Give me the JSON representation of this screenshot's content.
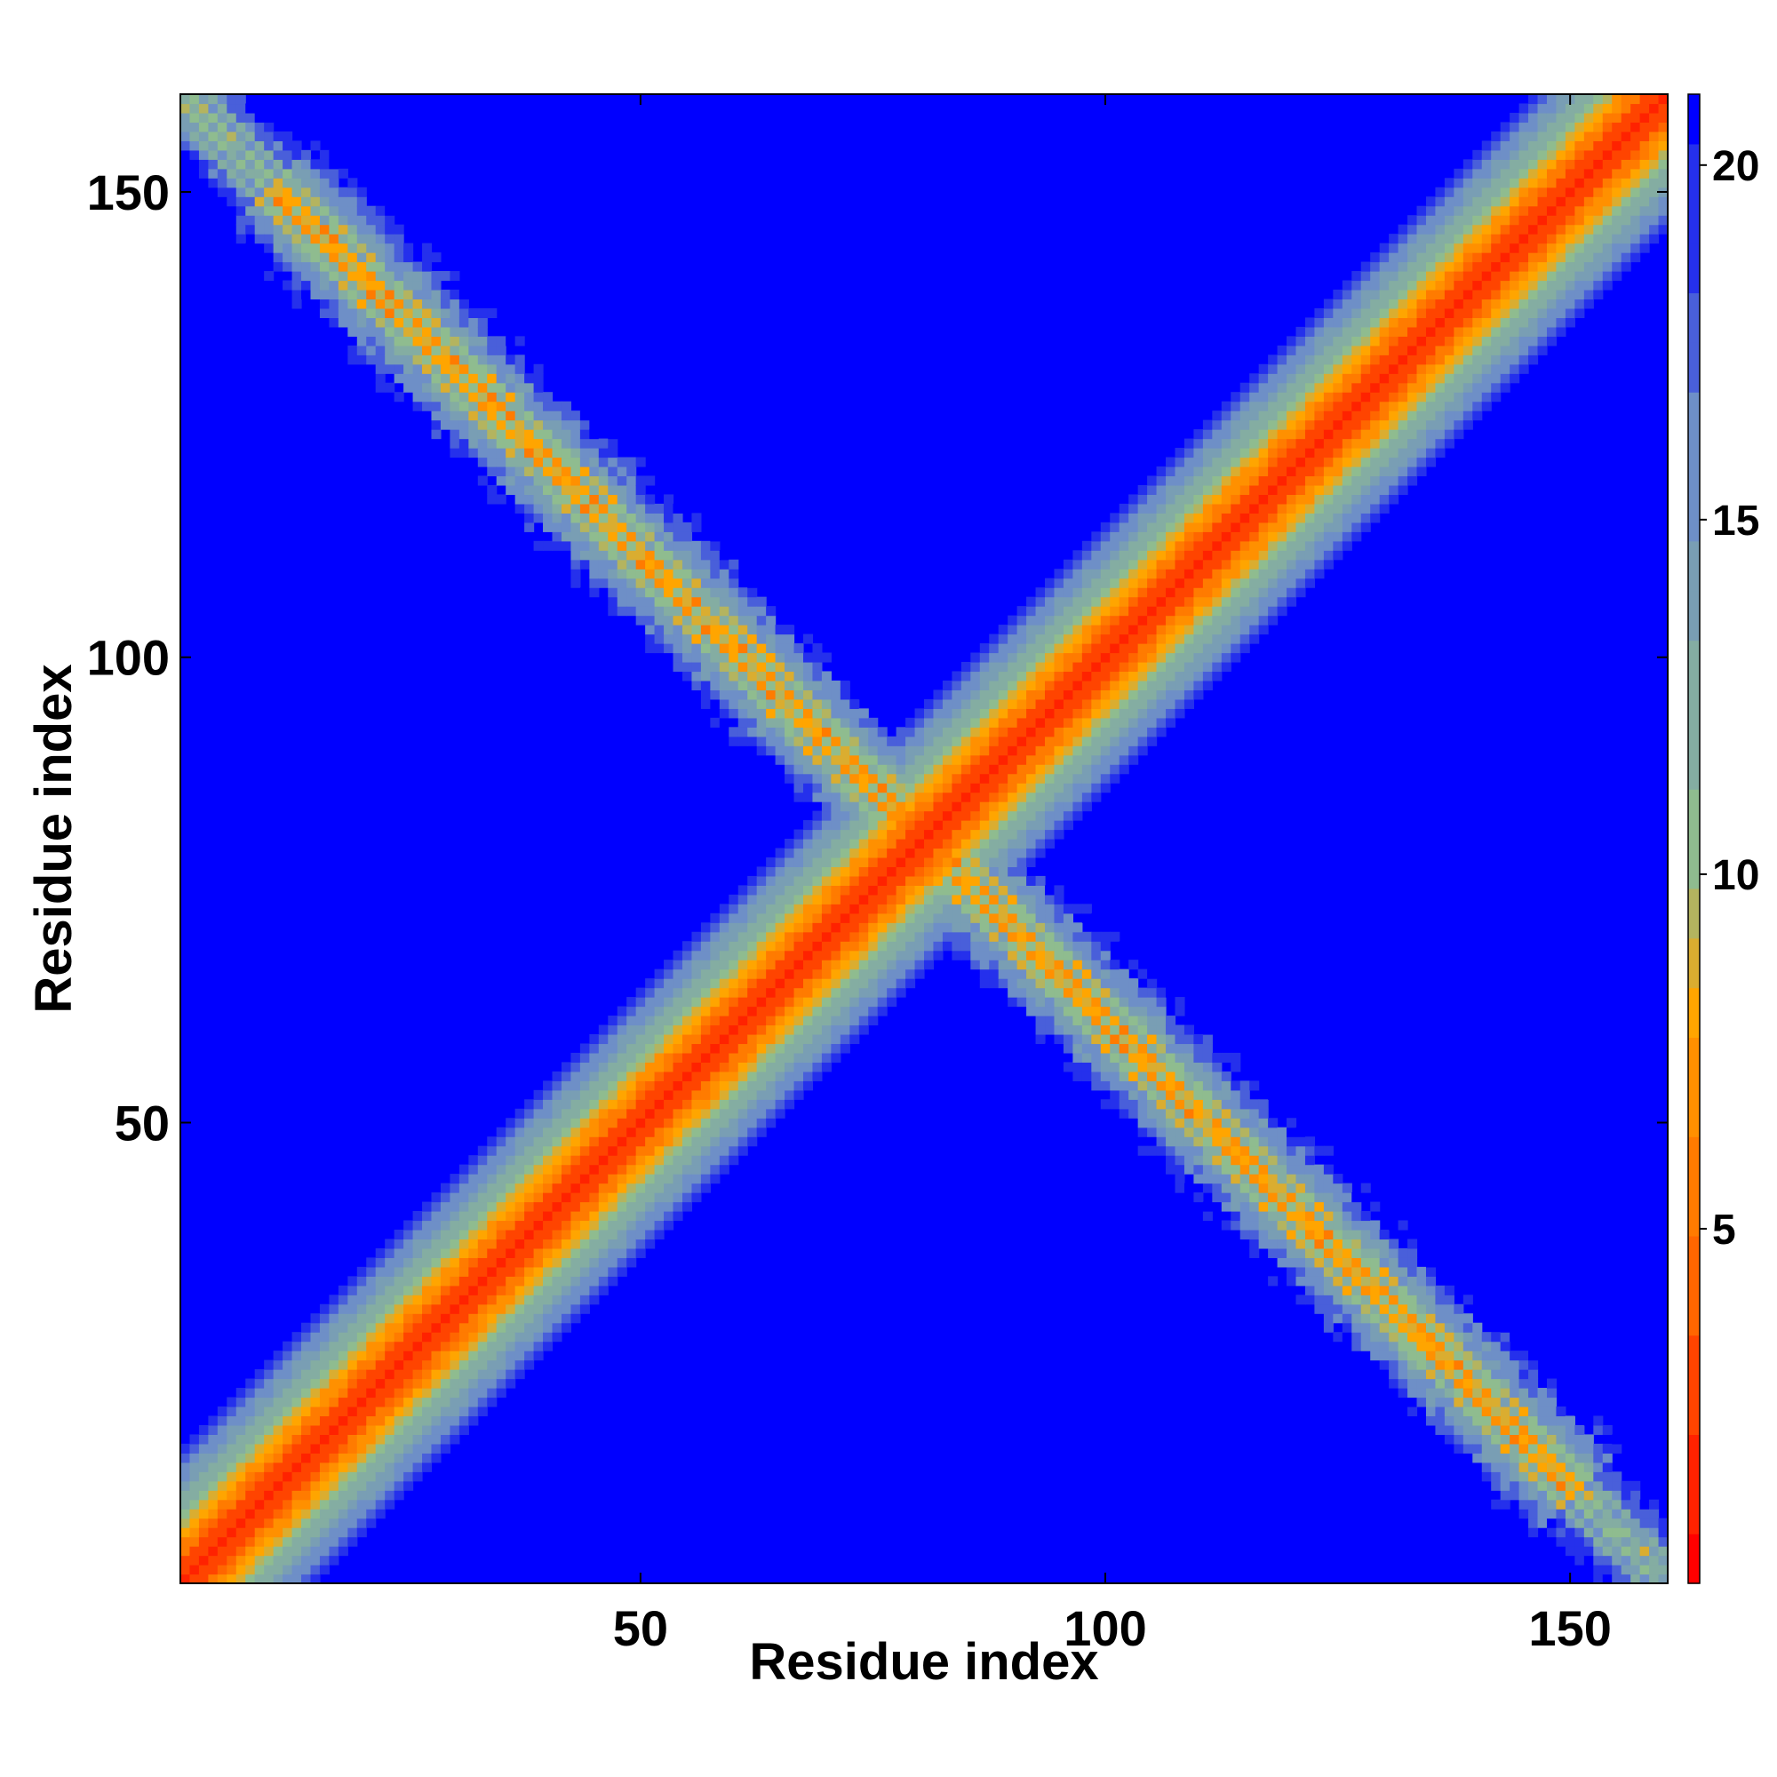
{
  "chart_data": {
    "type": "heatmap",
    "title": "",
    "xlabel": "Residue index",
    "ylabel": "Residue index",
    "xlim": [
      1,
      160
    ],
    "ylim": [
      1,
      160
    ],
    "xticks": [
      50,
      100,
      150
    ],
    "yticks": [
      50,
      100,
      150
    ],
    "colorbar": {
      "ticks": [
        5,
        10,
        15,
        20
      ],
      "range": [
        0,
        21
      ],
      "colors": [
        "#ff0000",
        "#ff6600",
        "#ffa500",
        "#8fbc8f",
        "#6e8fc7",
        "#0000ff"
      ],
      "stops": [
        0,
        4.5,
        8,
        10,
        16,
        21
      ]
    },
    "matrix_size": 160,
    "diagonal_contact_band_halfwidth": 14,
    "antidiagonal_contact_band_halfwidth": 10,
    "background_value": 21,
    "description_values": {
      "main_diagonal_min": 1,
      "antidiagonal_min": 6,
      "band_edge": 18
    }
  }
}
